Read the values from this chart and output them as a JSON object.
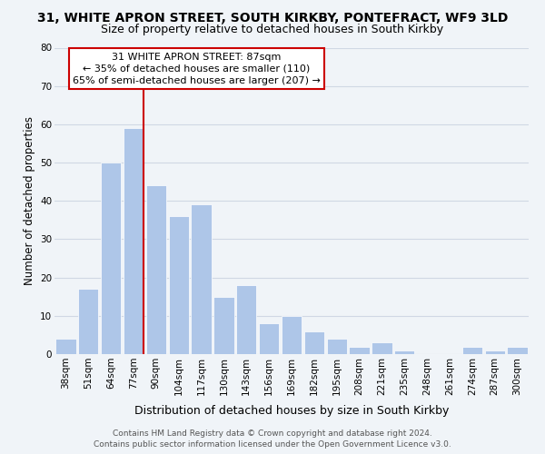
{
  "title": "31, WHITE APRON STREET, SOUTH KIRKBY, PONTEFRACT, WF9 3LD",
  "subtitle": "Size of property relative to detached houses in South Kirkby",
  "xlabel": "Distribution of detached houses by size in South Kirkby",
  "ylabel": "Number of detached properties",
  "bin_labels": [
    "38sqm",
    "51sqm",
    "64sqm",
    "77sqm",
    "90sqm",
    "104sqm",
    "117sqm",
    "130sqm",
    "143sqm",
    "156sqm",
    "169sqm",
    "182sqm",
    "195sqm",
    "208sqm",
    "221sqm",
    "235sqm",
    "248sqm",
    "261sqm",
    "274sqm",
    "287sqm",
    "300sqm"
  ],
  "bar_values": [
    4,
    17,
    50,
    59,
    44,
    36,
    39,
    15,
    18,
    8,
    10,
    6,
    4,
    2,
    3,
    1,
    0,
    0,
    2,
    1,
    2
  ],
  "bar_color": "#aec6e8",
  "bar_edge_color": "white",
  "grid_color": "#d0d8e4",
  "vline_color": "#cc0000",
  "annotation_title": "31 WHITE APRON STREET: 87sqm",
  "annotation_line1": "← 35% of detached houses are smaller (110)",
  "annotation_line2": "65% of semi-detached houses are larger (207) →",
  "annotation_box_color": "#ffffff",
  "annotation_box_edge": "#cc0000",
  "ylim": [
    0,
    80
  ],
  "yticks": [
    0,
    10,
    20,
    30,
    40,
    50,
    60,
    70,
    80
  ],
  "footer_line1": "Contains HM Land Registry data © Crown copyright and database right 2024.",
  "footer_line2": "Contains public sector information licensed under the Open Government Licence v3.0.",
  "background_color": "#f0f4f8",
  "title_fontsize": 10,
  "subtitle_fontsize": 9,
  "ylabel_fontsize": 8.5,
  "xlabel_fontsize": 9,
  "tick_fontsize": 7.5,
  "annotation_fontsize": 8,
  "footer_fontsize": 6.5
}
